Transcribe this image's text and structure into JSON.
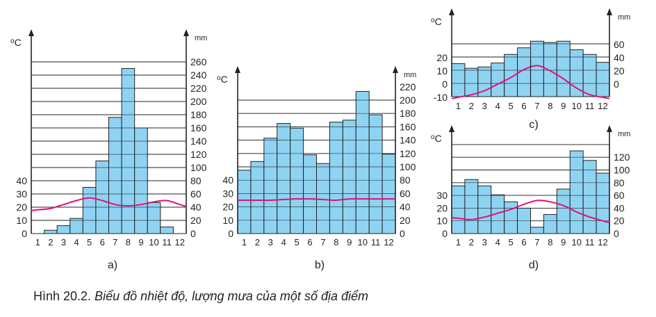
{
  "caption": {
    "label": "Hình 20.2.",
    "text": "Biểu đồ nhiệt độ, lượng mưa của một số địa điểm"
  },
  "colors": {
    "bar_fill": "#8fd3f2",
    "bar_stroke": "#222222",
    "temp_line": "#e0107a",
    "grid": "#222222"
  },
  "chart_data": [
    {
      "type": "bar",
      "panel_label": "a)",
      "categories": [
        "1",
        "2",
        "3",
        "4",
        "5",
        "6",
        "7",
        "8",
        "9",
        "10",
        "11",
        "12"
      ],
      "left_unit": "oC",
      "right_unit": "mm",
      "left_ticks": [
        "0",
        "10",
        "20",
        "30",
        "40"
      ],
      "right_ticks": [
        "0",
        "20",
        "40",
        "60",
        "80",
        "100",
        "120",
        "140",
        "160",
        "180",
        "200",
        "220",
        "240",
        "260"
      ],
      "rain_mm": [
        0,
        5,
        12,
        23,
        70,
        110,
        176,
        250,
        160,
        47,
        10,
        0
      ],
      "temp_c": [
        18,
        19,
        22,
        25,
        27,
        25,
        22,
        21,
        22,
        24,
        25,
        22
      ],
      "ylim_mm": [
        0,
        280
      ],
      "ylim_c": [
        0,
        70
      ]
    },
    {
      "type": "bar",
      "panel_label": "b)",
      "categories": [
        "1",
        "2",
        "3",
        "4",
        "5",
        "6",
        "7",
        "8",
        "9",
        "10",
        "11",
        "12"
      ],
      "left_unit": "oC",
      "right_unit": "mm",
      "left_ticks": [
        "0",
        "10",
        "20",
        "30",
        "40"
      ],
      "right_ticks": [
        "0",
        "20",
        "40",
        "60",
        "80",
        "100",
        "120",
        "140",
        "160",
        "180",
        "200",
        "220"
      ],
      "rain_mm": [
        95,
        108,
        143,
        165,
        158,
        118,
        105,
        167,
        170,
        213,
        178,
        119
      ],
      "temp_c": [
        25,
        25,
        25,
        25.5,
        26,
        26,
        25.5,
        25,
        26,
        26,
        26,
        26
      ],
      "ylim_mm": [
        0,
        240
      ],
      "ylim_c": [
        0,
        60
      ]
    },
    {
      "type": "bar",
      "panel_label": "c)",
      "categories": [
        "1",
        "2",
        "3",
        "4",
        "5",
        "6",
        "7",
        "8",
        "9",
        "10",
        "11",
        "12"
      ],
      "left_unit": "oC",
      "right_unit": "mm",
      "left_ticks": [
        "-10",
        "0",
        "10",
        "20"
      ],
      "right_ticks": [
        "0",
        "20",
        "40",
        "60"
      ],
      "rain_mm": [
        31,
        24,
        26,
        32,
        45,
        55,
        65,
        63,
        65,
        52,
        45,
        33
      ],
      "temp_c": [
        -10,
        -8,
        -5,
        0,
        5,
        11,
        14,
        10,
        4,
        -3,
        -8,
        -10
      ],
      "ylim_mm": [
        0,
        80
      ],
      "ylim_c": [
        -10,
        30
      ]
    },
    {
      "type": "bar",
      "panel_label": "d)",
      "categories": [
        "1",
        "2",
        "3",
        "4",
        "5",
        "6",
        "7",
        "8",
        "9",
        "10",
        "11",
        "12"
      ],
      "left_unit": "oC",
      "right_unit": "mm",
      "left_ticks": [
        "0",
        "10",
        "20",
        "30"
      ],
      "right_ticks": [
        "0",
        "20",
        "40",
        "60",
        "80",
        "100",
        "120"
      ],
      "rain_mm": [
        75,
        85,
        75,
        61,
        50,
        40,
        10,
        30,
        70,
        130,
        115,
        95
      ],
      "temp_c": [
        12,
        11,
        13,
        16,
        19,
        23,
        26,
        25,
        22,
        17,
        13,
        10
      ],
      "ylim_mm": [
        0,
        140
      ],
      "ylim_c": [
        0,
        70
      ]
    }
  ]
}
